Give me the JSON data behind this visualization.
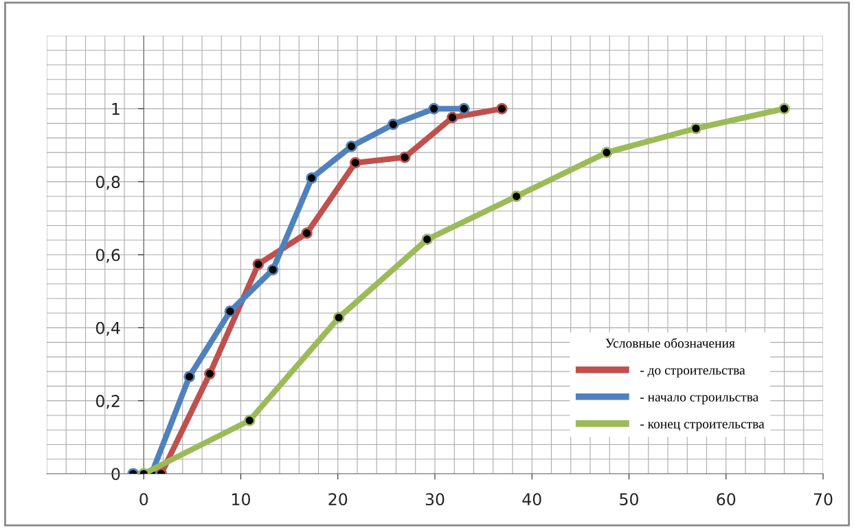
{
  "chart_data": {
    "type": "line",
    "xlim": [
      -10,
      70
    ],
    "ylim": [
      0,
      1.2
    ],
    "xticks": [
      0,
      10,
      20,
      30,
      40,
      50,
      60,
      70
    ],
    "yticks": [
      0,
      {
        "value": 0.2,
        "label": "0,2"
      },
      {
        "value": 0.4,
        "label": "0,4"
      },
      {
        "value": 0.6,
        "label": "0,6"
      },
      {
        "value": 0.8,
        "label": "0,8"
      },
      1
    ],
    "grid": true,
    "marker": "circle",
    "line_style": "solid",
    "legend": "bottom right",
    "legend_title": "Условные обозначения",
    "series": [
      {
        "name": "- до строительства",
        "color": "#c0504d",
        "x": [
          1.8,
          6.8,
          11.8,
          16.8,
          21.8,
          26.9,
          31.8,
          36.9
        ],
        "values": [
          0,
          0.274,
          0.574,
          0.659,
          0.852,
          0.867,
          0.976,
          1
        ]
      },
      {
        "name": "- начало строильства",
        "color": "#4f81bd",
        "x": [
          -1.1,
          0.8,
          4.7,
          8.9,
          13.3,
          17.3,
          21.4,
          25.7,
          29.9,
          33.0
        ],
        "values": [
          0,
          0,
          0.266,
          0.445,
          0.559,
          0.81,
          0.897,
          0.957,
          1,
          1
        ]
      },
      {
        "name": "- конец строительства",
        "color": "#9bbb59",
        "x": [
          0,
          10.9,
          20.1,
          29.2,
          38.4,
          47.7,
          56.9,
          66.0
        ],
        "values": [
          0,
          0.146,
          0.428,
          0.642,
          0.76,
          0.88,
          0.946,
          1
        ]
      }
    ]
  }
}
